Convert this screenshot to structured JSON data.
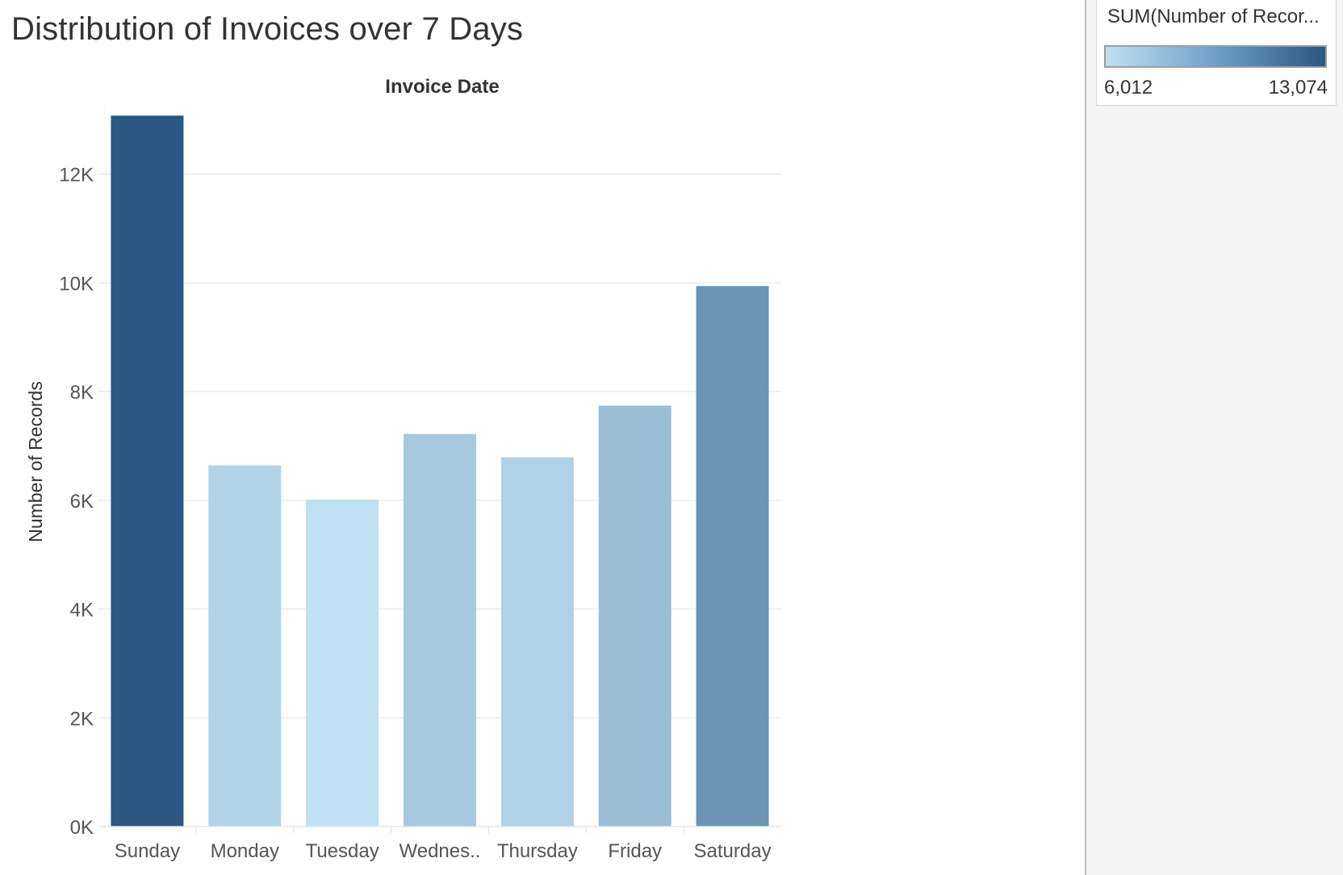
{
  "title": "Distribution of Invoices over 7 Days",
  "chart_data": {
    "type": "bar",
    "title": "Distribution of Invoices over 7 Days",
    "column_header": "Invoice Date",
    "xlabel": "",
    "ylabel": "Number of Records",
    "categories": [
      "Sunday",
      "Monday",
      "Tuesday",
      "Wednes..",
      "Thursday",
      "Friday",
      "Saturday"
    ],
    "values": [
      13074,
      6640,
      6012,
      7220,
      6790,
      7740,
      9940
    ],
    "ylim": [
      0,
      13300
    ],
    "yticks": [
      0,
      2000,
      4000,
      6000,
      8000,
      10000,
      12000
    ],
    "ytick_labels": [
      "0K",
      "2K",
      "4K",
      "6K",
      "8K",
      "10K",
      "12K"
    ],
    "grid": true,
    "color_scale": {
      "min_color": "#bfe0f2",
      "max_color": "#2a5783"
    }
  },
  "legend": {
    "title": "SUM(Number of Recor...",
    "min_label": "6,012",
    "max_label": "13,074",
    "min_value": 6012,
    "max_value": 13074
  }
}
